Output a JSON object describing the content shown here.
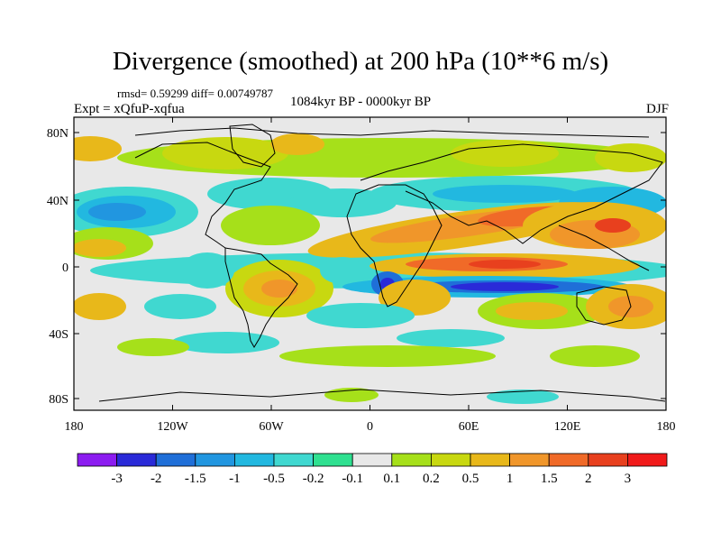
{
  "title": "Divergence (smoothed) at 200 hPa (10**6 m/s)",
  "stats": "rmsd= 0.59299 diff= 0.00749787",
  "experiment": "Expt = xQfuP-xqfua",
  "period": "1084kyr BP - 0000kyr BP",
  "season": "DJF",
  "lat_labels": [
    "80N",
    "40N",
    "0",
    "40S",
    "80S"
  ],
  "lon_labels": [
    "180",
    "120W",
    "60W",
    "0",
    "60E",
    "120E",
    "180"
  ],
  "colorbar": {
    "labels": [
      "-3",
      "-2",
      "-1.5",
      "-1",
      "-0.5",
      "-0.2",
      "-0.1",
      "0.1",
      "0.2",
      "0.5",
      "1",
      "1.5",
      "2",
      "3"
    ],
    "colors": [
      "#8c1cf0",
      "#2a2ad8",
      "#1f6fd8",
      "#2196e0",
      "#22b8e0",
      "#40d8d0",
      "#2fe090",
      "#e8e8e8",
      "#a6e01a",
      "#c8d810",
      "#e8b81a",
      "#f0962a",
      "#f06a28",
      "#e8401e",
      "#f01a1a"
    ]
  },
  "map_colors": {
    "neutral": "#e8e8e8",
    "neg_light": "#40d8d0",
    "neg_mid": "#22b8e0",
    "neg_strong": "#2196e0",
    "neg_deep": "#1f6fd8",
    "neg_max": "#2a2ad8",
    "pos_light": "#a6e01a",
    "pos_mid": "#c8d810",
    "pos_strong": "#e8b81a",
    "pos_high": "#f0962a",
    "pos_max": "#f06a28",
    "pos_peak": "#e8401e"
  }
}
